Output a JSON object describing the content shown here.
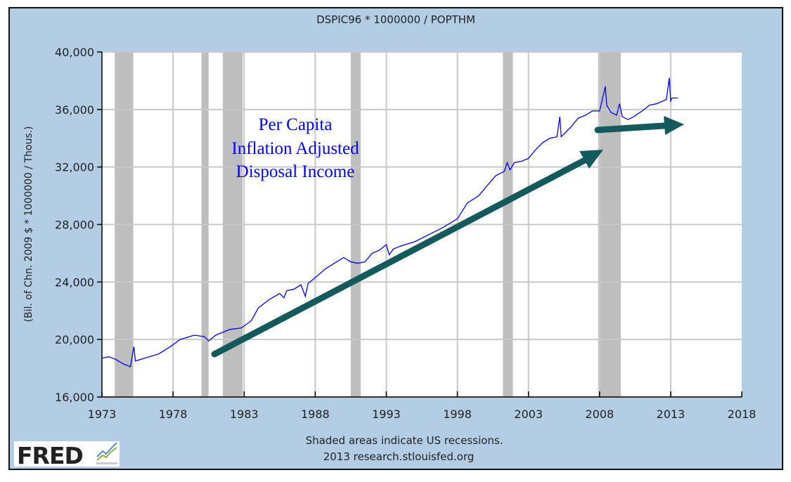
{
  "chart_data": {
    "type": "line",
    "title": "DSPIC96 * 1000000 / POPTHM",
    "ylabel": "(Bil. of Chn. 2009 $ * 1000000 / Thous.)",
    "xlabel": "",
    "xlim": [
      1973,
      2018
    ],
    "ylim": [
      16000,
      40000
    ],
    "x_ticks": [
      "1973",
      "1978",
      "1983",
      "1988",
      "1993",
      "1998",
      "2003",
      "2008",
      "2013",
      "2018"
    ],
    "y_ticks": [
      "16,000",
      "20,000",
      "24,000",
      "28,000",
      "32,000",
      "36,000",
      "40,000"
    ],
    "grid": true,
    "series_color": "#0000ff",
    "recession_color": "#bebebe",
    "recessions": [
      [
        1973.9,
        1975.2
      ],
      [
        1980.0,
        1980.5
      ],
      [
        1981.5,
        1982.9
      ],
      [
        1990.5,
        1991.2
      ],
      [
        2001.2,
        2001.9
      ],
      [
        2007.9,
        2009.5
      ]
    ],
    "series": [
      {
        "name": "DSPIC96 * 1000000 / POPTHM",
        "points": [
          [
            1973.0,
            18700
          ],
          [
            1973.5,
            18800
          ],
          [
            1974.0,
            18600
          ],
          [
            1974.5,
            18300
          ],
          [
            1975.0,
            18100
          ],
          [
            1975.25,
            19500
          ],
          [
            1975.35,
            18500
          ],
          [
            1976.0,
            18700
          ],
          [
            1977.0,
            19000
          ],
          [
            1977.8,
            19500
          ],
          [
            1978.5,
            20000
          ],
          [
            1979.5,
            20300
          ],
          [
            1980.2,
            20200
          ],
          [
            1980.5,
            19900
          ],
          [
            1981.0,
            20300
          ],
          [
            1981.5,
            20500
          ],
          [
            1982.0,
            20700
          ],
          [
            1982.8,
            20800
          ],
          [
            1983.5,
            21300
          ],
          [
            1984.0,
            22200
          ],
          [
            1984.8,
            22800
          ],
          [
            1985.5,
            23200
          ],
          [
            1985.8,
            22900
          ],
          [
            1986.0,
            23400
          ],
          [
            1986.5,
            23500
          ],
          [
            1987.0,
            23800
          ],
          [
            1987.3,
            23000
          ],
          [
            1987.5,
            23900
          ],
          [
            1988.0,
            24300
          ],
          [
            1988.7,
            24900
          ],
          [
            1989.5,
            25400
          ],
          [
            1990.0,
            25700
          ],
          [
            1990.5,
            25400
          ],
          [
            1991.0,
            25300
          ],
          [
            1991.5,
            25400
          ],
          [
            1992.0,
            26000
          ],
          [
            1992.5,
            26200
          ],
          [
            1993.0,
            26600
          ],
          [
            1993.2,
            25900
          ],
          [
            1993.5,
            26300
          ],
          [
            1994.0,
            26500
          ],
          [
            1995.0,
            26800
          ],
          [
            1996.0,
            27300
          ],
          [
            1997.0,
            27800
          ],
          [
            1998.0,
            28400
          ],
          [
            1998.7,
            29500
          ],
          [
            1999.5,
            30000
          ],
          [
            2000.0,
            30600
          ],
          [
            2000.7,
            31400
          ],
          [
            2001.3,
            31700
          ],
          [
            2001.5,
            32300
          ],
          [
            2001.7,
            31800
          ],
          [
            2002.0,
            32300
          ],
          [
            2002.5,
            32400
          ],
          [
            2003.0,
            32600
          ],
          [
            2003.5,
            33200
          ],
          [
            2004.0,
            33700
          ],
          [
            2004.5,
            34000
          ],
          [
            2005.0,
            34100
          ],
          [
            2005.2,
            35500
          ],
          [
            2005.3,
            34100
          ],
          [
            2006.0,
            34800
          ],
          [
            2006.5,
            35400
          ],
          [
            2007.0,
            35600
          ],
          [
            2007.5,
            35900
          ],
          [
            2008.0,
            35900
          ],
          [
            2008.4,
            37600
          ],
          [
            2008.5,
            36300
          ],
          [
            2008.8,
            35800
          ],
          [
            2009.2,
            35600
          ],
          [
            2009.4,
            36400
          ],
          [
            2009.6,
            35500
          ],
          [
            2010.0,
            35300
          ],
          [
            2010.4,
            35500
          ],
          [
            2011.0,
            35900
          ],
          [
            2011.5,
            36300
          ],
          [
            2012.0,
            36400
          ],
          [
            2012.7,
            36700
          ],
          [
            2012.9,
            38200
          ],
          [
            2013.0,
            36600
          ],
          [
            2013.1,
            36800
          ],
          [
            2013.5,
            36800
          ]
        ]
      }
    ],
    "annotation_lines": [
      "Per Capita",
      "Inflation Adjusted",
      "Disposal Income"
    ],
    "annotation_color": "#0000ff",
    "arrow_color": "#125a5c",
    "footer_note": "Shaded areas indicate US recessions.",
    "footer_source": "2013 research.stlouisfed.org"
  },
  "logo": {
    "text": "FRED"
  }
}
